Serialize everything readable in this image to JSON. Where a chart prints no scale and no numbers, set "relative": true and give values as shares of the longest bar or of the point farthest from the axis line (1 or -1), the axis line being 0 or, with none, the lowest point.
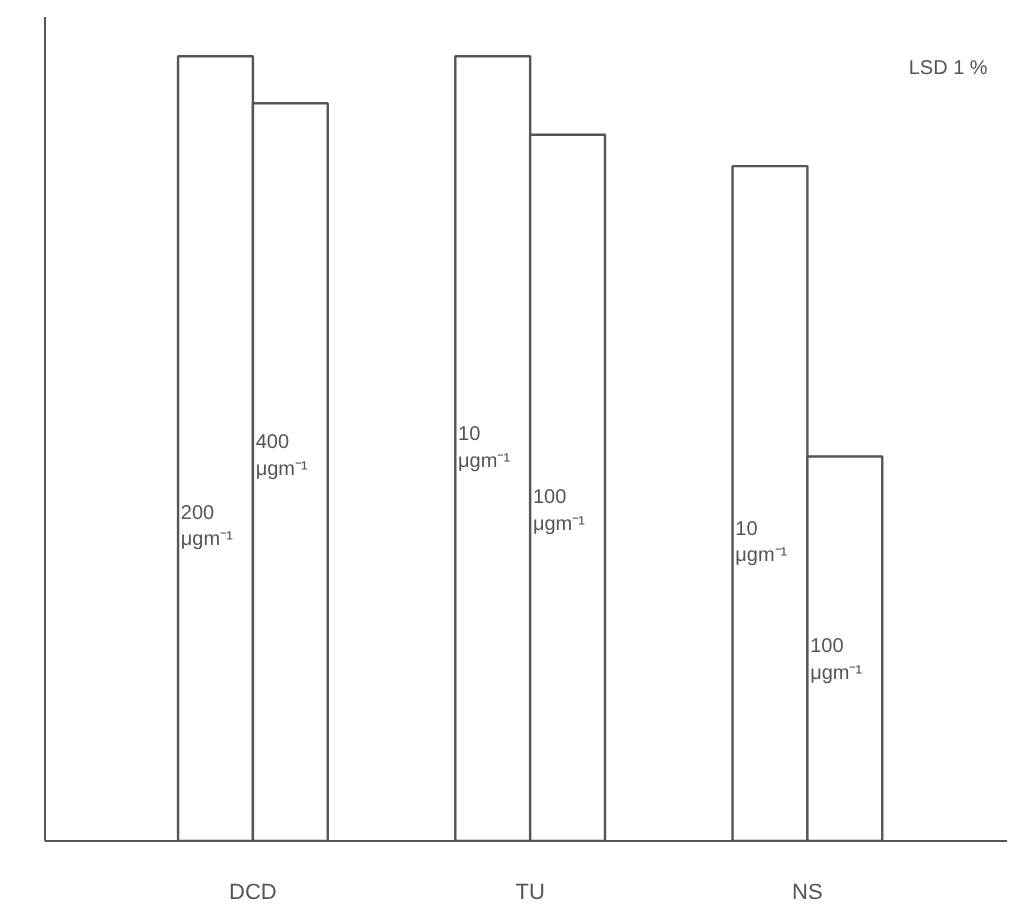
{
  "chart_data": {
    "type": "bar",
    "relative": true,
    "categories": [
      "DCD",
      "TU",
      "NS"
    ],
    "grid": false,
    "annotations": [
      "LSD 1 %",
      {
        "text": "200\nμgm⁻¹",
        "x": "DCD",
        "y": 0.4
      },
      {
        "text": "400\nμgm⁻¹",
        "x": "DCD",
        "y": 0.49
      },
      {
        "text": "10\nμgm⁻¹",
        "x": "TU",
        "y": 0.5
      },
      {
        "text": "100\nμgm⁻¹",
        "x": "TU",
        "y": 0.42
      },
      {
        "text": "10\nμgm⁻¹",
        "x": "NS",
        "y": 0.38
      },
      {
        "text": "100\nμgm⁻¹",
        "x": "NS",
        "y": 0.23
      }
    ],
    "series": [
      {
        "color": "#ffffff",
        "values": [
          1.0,
          1.0,
          0.86
        ]
      },
      {
        "color": "#ffffff",
        "values": [
          0.94,
          0.9,
          0.49
        ]
      }
    ]
  }
}
